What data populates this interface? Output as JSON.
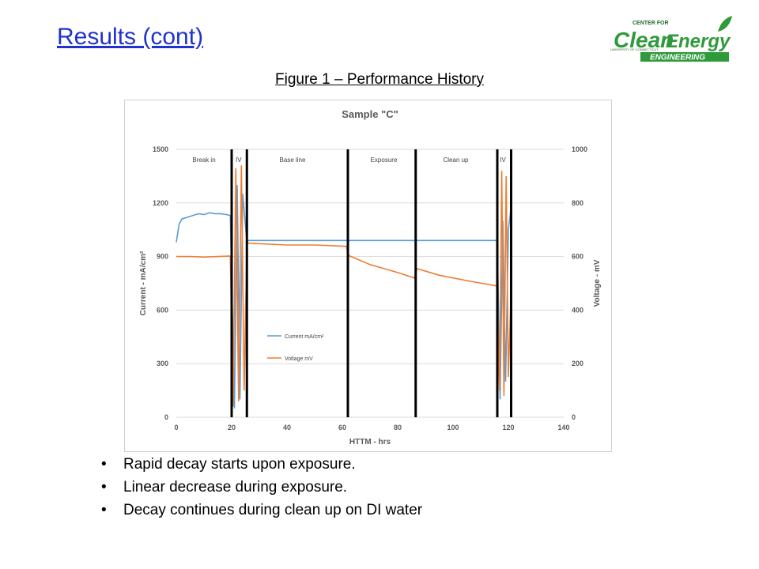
{
  "slide": {
    "title": "Results (cont)"
  },
  "logo": {
    "top_text": "CENTER FOR",
    "word_a": "Clean",
    "word_b": "Energy",
    "side_text": "UNIVERSITY OF CONNECTICUT",
    "bottom_text": "ENGINEERING"
  },
  "figure": {
    "caption": "Figure 1 – Performance History"
  },
  "colors": {
    "current": "#5b9bd5",
    "voltage": "#ed7d31",
    "divider": "#000000",
    "title_link": "#1f33cc",
    "logo_green": "#2e9a3a"
  },
  "chart_data": {
    "type": "line",
    "title": "Sample \"C\"",
    "xlabel": "HTTM - hrs",
    "ylabel": "Current - mA/cm²",
    "y2label": "Voltage - mV",
    "xlim": [
      0,
      140
    ],
    "ylim": [
      0,
      1500
    ],
    "y2lim": [
      0,
      1000
    ],
    "x_ticks": [
      "0",
      "20",
      "40",
      "60",
      "80",
      "100",
      "120",
      "140"
    ],
    "y_ticks": [
      "0",
      "300",
      "600",
      "900",
      "1200",
      "1500"
    ],
    "y2_ticks": [
      "0",
      "200",
      "400",
      "600",
      "800",
      "1000"
    ],
    "grid": "horizontal",
    "legend_position": "middle-left",
    "dividers": [
      20,
      25.5,
      62,
      86.5,
      116,
      121
    ],
    "region_labels": [
      {
        "text": "Break in",
        "x": 10
      },
      {
        "text": "IV",
        "x": 22.5
      },
      {
        "text": "Base line",
        "x": 42
      },
      {
        "text": "Exposure",
        "x": 75
      },
      {
        "text": "Clean up",
        "x": 101
      },
      {
        "text": "IV",
        "x": 118
      }
    ],
    "series": [
      {
        "name": "Current mA/cm²",
        "axis": "left",
        "x": [
          0,
          1,
          2,
          4,
          6,
          8,
          10,
          12,
          14,
          16,
          18,
          19.5,
          21,
          22,
          23,
          24,
          25.5,
          26,
          40,
          60,
          62,
          86,
          100,
          116,
          117,
          118,
          119,
          120,
          121
        ],
        "y": [
          980,
          1080,
          1110,
          1120,
          1130,
          1140,
          1135,
          1145,
          1140,
          1140,
          1135,
          1130,
          50,
          1300,
          100,
          1250,
          980,
          990,
          990,
          990,
          990,
          990,
          990,
          990,
          100,
          1100,
          200,
          1050,
          1180
        ]
      },
      {
        "name": "Voltage mV",
        "axis": "right",
        "x": [
          0,
          5,
          10,
          15,
          19.5,
          20.5,
          21.5,
          22.5,
          23.5,
          24.5,
          25.5,
          26,
          40,
          50,
          61.5,
          62,
          70,
          80,
          86,
          87,
          95,
          105,
          116,
          116.8,
          117.6,
          118.4,
          119.2,
          120,
          121
        ],
        "y": [
          600,
          600,
          598,
          600,
          602,
          40,
          930,
          60,
          940,
          100,
          650,
          650,
          643,
          643,
          638,
          605,
          570,
          540,
          520,
          555,
          530,
          510,
          490,
          100,
          920,
          80,
          900,
          150,
          480
        ]
      }
    ]
  },
  "bullets": [
    "Rapid decay starts upon exposure.",
    "Linear decrease during exposure.",
    "Decay continues during clean up on DI water"
  ],
  "bullet_char": "•"
}
